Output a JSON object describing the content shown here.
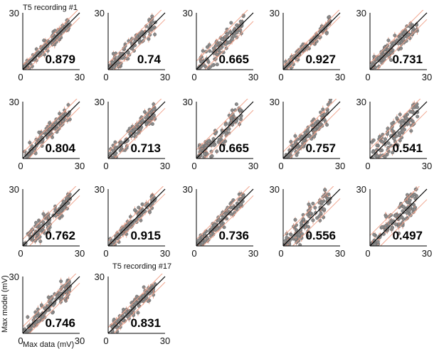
{
  "chart_data": {
    "type": "scatter",
    "xlabel": "Max data (mV)",
    "ylabel": "Max model (mV)",
    "xlim": [
      0,
      30
    ],
    "ylim": [
      0,
      30
    ],
    "tick_labels": [
      "0",
      "30"
    ],
    "colors": {
      "points": "#8a8a8a",
      "point_edge": "#5a5a5a",
      "error_bars": "#e8937a",
      "band_lines": "#f0a58e",
      "unity_line": "#000000"
    },
    "annotations": [
      "T5 recording #1",
      "T5 recording #17"
    ],
    "panels": [
      {
        "correlation": "0.879",
        "spread": 2.5
      },
      {
        "correlation": "0.74",
        "spread": 3.5
      },
      {
        "correlation": "0.665",
        "spread": 4.5
      },
      {
        "correlation": "0.927",
        "spread": 2.0
      },
      {
        "correlation": "0.731",
        "spread": 3.5
      },
      {
        "correlation": "0.804",
        "spread": 3.0
      },
      {
        "correlation": "0.713",
        "spread": 3.5
      },
      {
        "correlation": "0.665",
        "spread": 4.5
      },
      {
        "correlation": "0.757",
        "spread": 3.5
      },
      {
        "correlation": "0.541",
        "spread": 5.0
      },
      {
        "correlation": "0.762",
        "spread": 3.5
      },
      {
        "correlation": "0.915",
        "spread": 2.5
      },
      {
        "correlation": "0.736",
        "spread": 3.5
      },
      {
        "correlation": "0.556",
        "spread": 5.0
      },
      {
        "correlation": "0.497",
        "spread": 5.5
      },
      {
        "correlation": "0.746",
        "spread": 3.5
      },
      {
        "correlation": "0.831",
        "spread": 3.0
      }
    ]
  }
}
